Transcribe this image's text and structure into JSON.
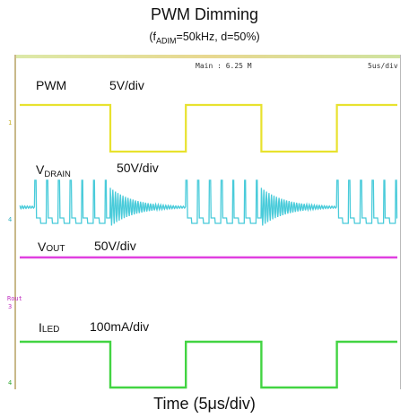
{
  "chart_data": {
    "type": "line",
    "title": "PWM Dimming",
    "subtitle_prefix": "(f",
    "subtitle_sub": "ADIM",
    "subtitle_rest": "=50kHz, d=50%)",
    "xlabel": "Time (5μs/div)",
    "scope_readouts": {
      "main": "Main : 6.25 M",
      "timebase": "5us/div"
    },
    "channel_markers": [
      "1",
      "4",
      "Rout",
      "3",
      "4"
    ],
    "x_period_us": 20,
    "duty": 0.5,
    "x_range_us": [
      0,
      50
    ],
    "series": [
      {
        "name": "PWM",
        "scale": "5V/div",
        "color": "#e8e22e",
        "shape": "square"
      },
      {
        "name": "V",
        "name_sub": "DRAIN",
        "scale": "50V/div",
        "color": "#3fc8d8",
        "shape": "switching"
      },
      {
        "name": "V",
        "name_sub": "OUT",
        "scale": "50V/div",
        "color": "#e040e0",
        "shape": "flat"
      },
      {
        "name": "I",
        "name_sub": "LED",
        "scale": "100mA/div",
        "color": "#42d442",
        "shape": "square"
      }
    ]
  }
}
